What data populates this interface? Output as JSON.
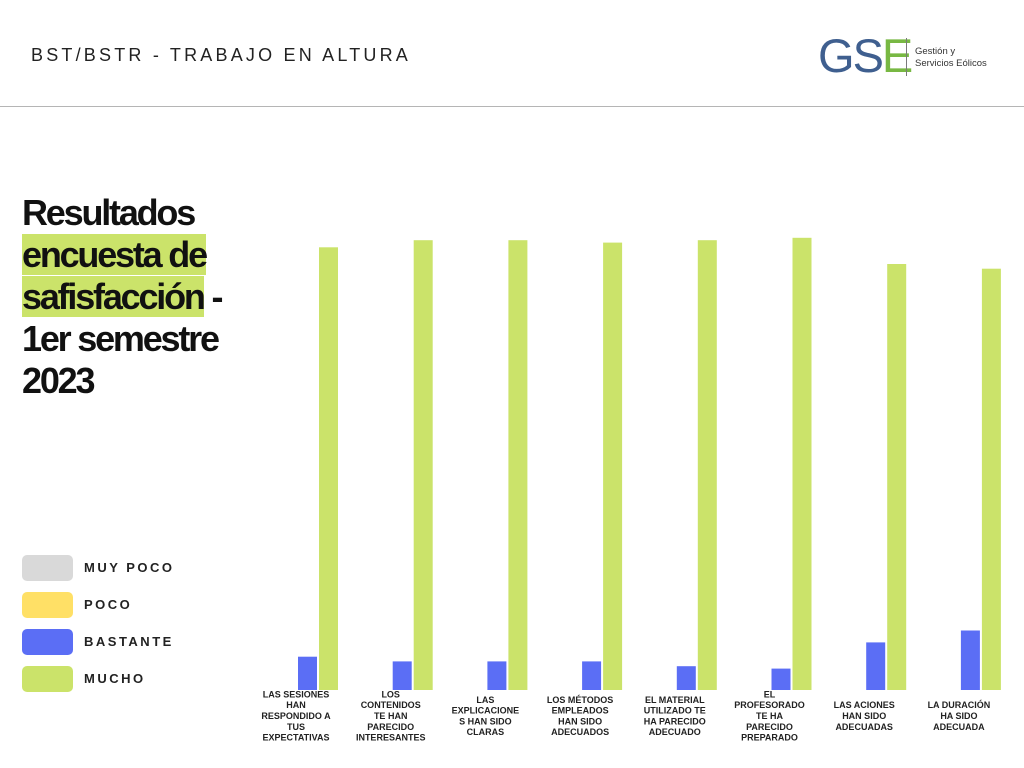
{
  "header": {
    "title": "BST/BSTR - TRABAJO EN ALTURA",
    "logo": {
      "letters": [
        "G",
        "S",
        "E"
      ],
      "subtitle_line1": "Gestión y",
      "subtitle_line2": "Servicios Eólicos"
    }
  },
  "title": {
    "line1": "Resultados",
    "line2": "encuesta de",
    "line3a": "safisfacción",
    "line3b": " -",
    "line4": "1er semestre",
    "line5": "2023"
  },
  "legend": [
    {
      "label": "MUY POCO",
      "color": "#d9d9d9"
    },
    {
      "label": "POCO",
      "color": "#ffe066"
    },
    {
      "label": "BASTANTE",
      "color": "#5b6ef5"
    },
    {
      "label": "MUCHO",
      "color": "#cbe36a"
    }
  ],
  "chart_data": {
    "type": "bar",
    "title": "",
    "xlabel": "",
    "ylabel": "",
    "ylim": [
      0,
      100
    ],
    "grid": false,
    "legend_position": "left",
    "categories": [
      [
        "LAS SESIONES",
        "HAN",
        "RESPONDIDO A",
        "TUS",
        "EXPECTATIVAS"
      ],
      [
        "LOS",
        "CONTENIDOS",
        "TE HAN",
        "PARECIDO",
        "INTERESANTES"
      ],
      [
        "LAS",
        "EXPLICACIONE",
        "S HAN SIDO",
        "CLARAS"
      ],
      [
        "LOS MÉTODOS",
        "EMPLEADOS",
        "HAN SIDO",
        "ADECUADOS"
      ],
      [
        "EL MATERIAL",
        "UTILIZADO TE",
        "HA PARECIDO",
        "ADECUADO"
      ],
      [
        "EL",
        "PROFESORADO",
        "TE HA",
        "PARECIDO",
        "PREPARADO"
      ],
      [
        "LAS ACIONES",
        "HAN SIDO",
        "ADECUADAS"
      ],
      [
        "LA DURACIÓN",
        "HA SIDO",
        "ADECUADA"
      ]
    ],
    "series": [
      {
        "name": "MUY POCO",
        "color": "#d9d9d9",
        "values": [
          0,
          0,
          0,
          0,
          0,
          0,
          0,
          0
        ]
      },
      {
        "name": "POCO",
        "color": "#ffe066",
        "values": [
          0,
          0,
          0,
          0,
          0,
          0,
          0,
          0
        ]
      },
      {
        "name": "BASTANTE",
        "color": "#5b6ef5",
        "values": [
          7,
          6,
          6,
          6,
          5,
          4.5,
          10,
          12.5
        ]
      },
      {
        "name": "MUCHO",
        "color": "#cbe36a",
        "values": [
          93,
          94.5,
          94.5,
          94,
          94.5,
          95,
          89.5,
          88.5
        ]
      }
    ]
  }
}
